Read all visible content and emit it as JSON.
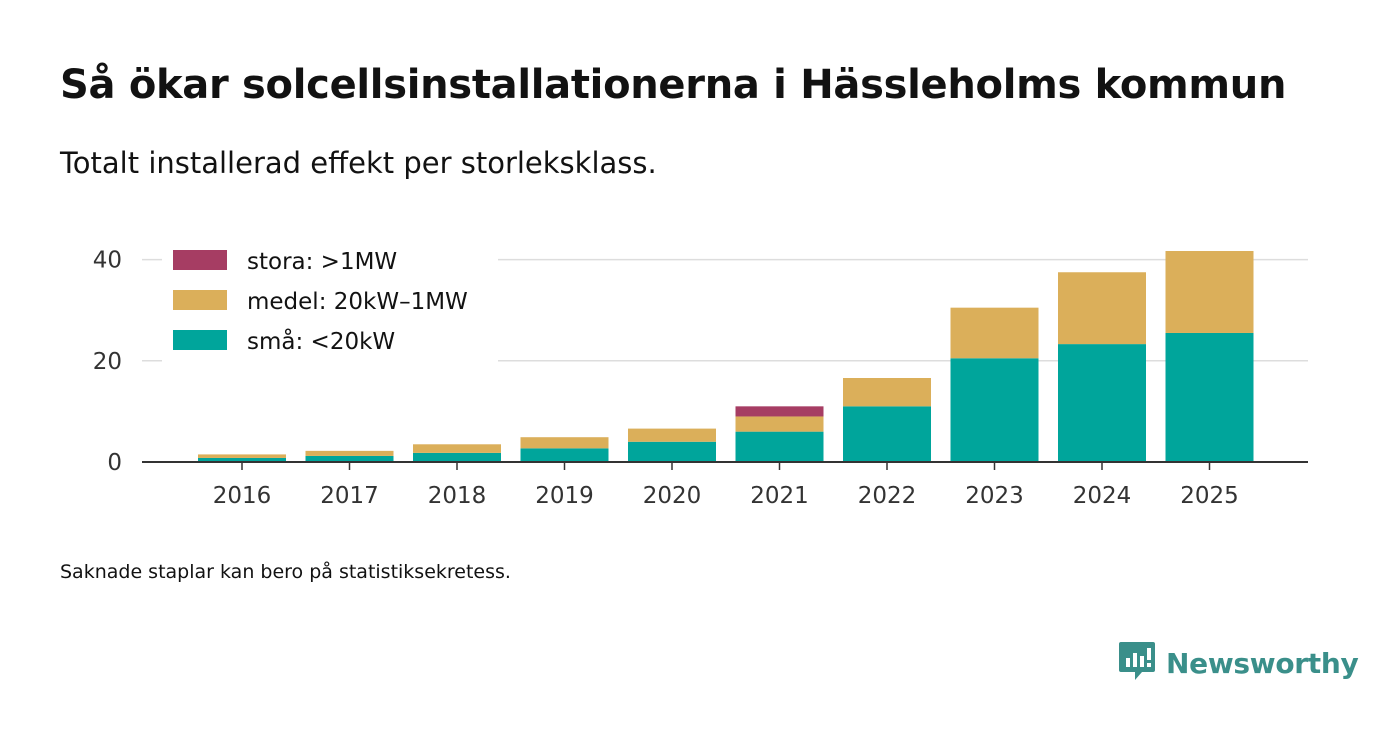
{
  "title": "Så ökar solcellsinstallationerna i Hässleholms kommun",
  "subtitle": "Totalt installerad effekt per storleksklass.",
  "footnote": "Saknade staplar kan bero på statistiksekretess.",
  "brand": {
    "name": "Newsworthy",
    "icon": "newsworthy-logo-icon"
  },
  "colors": {
    "stora": "#a63d63",
    "medel": "#dbaf5a",
    "sma": "#00a59b",
    "grid": "#dddddd",
    "axis": "#333333"
  },
  "chart_data": {
    "type": "bar",
    "stacked": true,
    "categories": [
      "2016",
      "2017",
      "2018",
      "2019",
      "2020",
      "2021",
      "2022",
      "2023",
      "2024",
      "2025"
    ],
    "series": [
      {
        "name": "små: <20kW",
        "key": "sma",
        "values": [
          0.8,
          1.2,
          1.8,
          2.7,
          4.0,
          6.0,
          11.0,
          20.5,
          23.3,
          25.5
        ]
      },
      {
        "name": "medel: 20kW–1MW",
        "key": "medel",
        "values": [
          0.7,
          1.0,
          1.7,
          2.2,
          2.6,
          3.0,
          5.6,
          10.0,
          14.2,
          16.2
        ]
      },
      {
        "name": "stora: >1MW",
        "key": "stora",
        "values": [
          0,
          0,
          0,
          0,
          0,
          2.0,
          0,
          0,
          0,
          0
        ]
      }
    ],
    "legend": [
      "stora: >1MW",
      "medel: 20kW–1MW",
      "små: <20kW"
    ],
    "yticks": [
      0,
      20,
      40
    ],
    "ylim": [
      0,
      42
    ],
    "xlabel": "",
    "ylabel": "",
    "grid": true,
    "legend_position": "top-left"
  }
}
